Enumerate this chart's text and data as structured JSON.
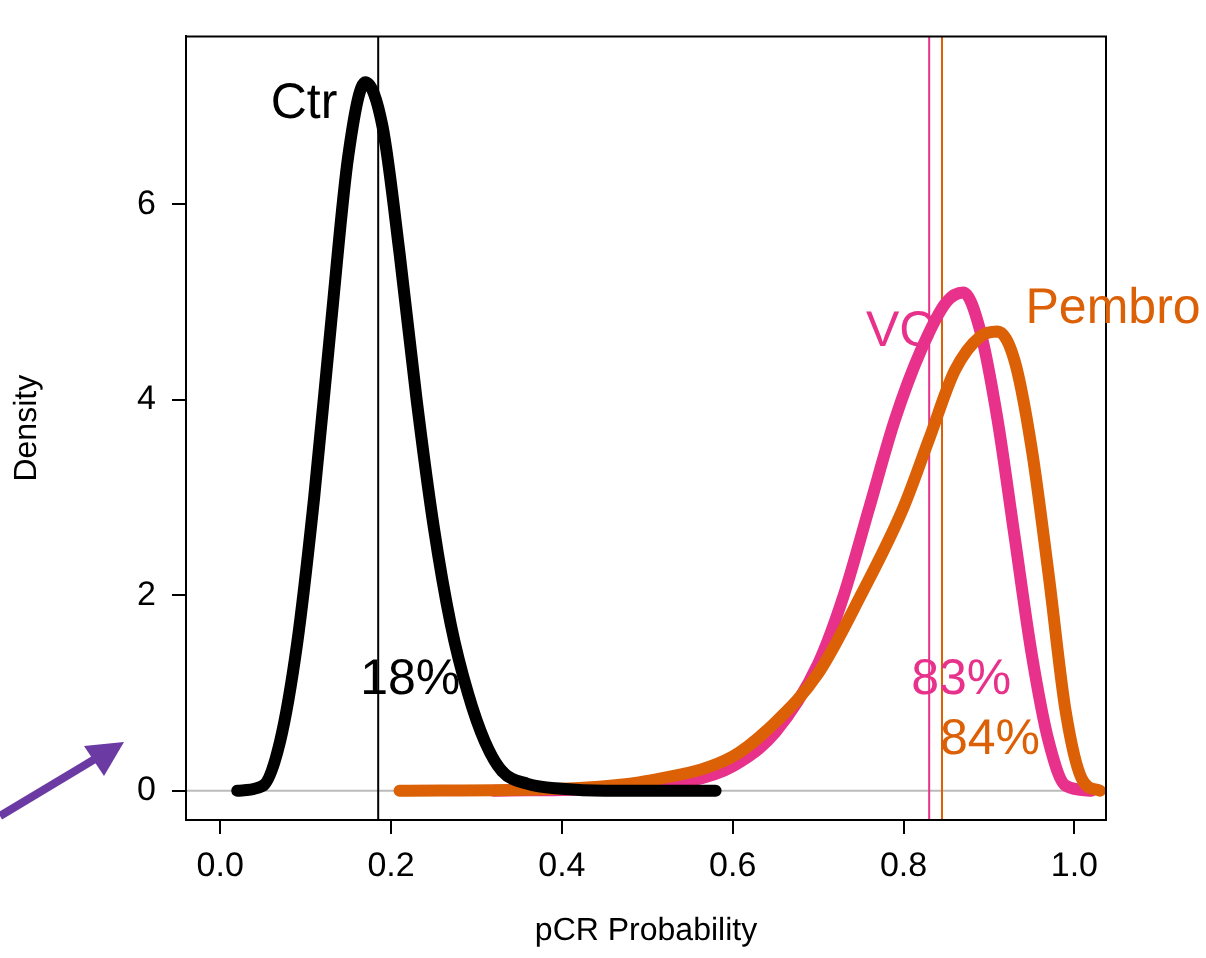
{
  "chart_data": {
    "type": "line",
    "xlabel": "pCR Probability",
    "ylabel": "Density",
    "xlim": [
      -0.04,
      1.037
    ],
    "xticks": [
      {
        "value": 0,
        "label": "0.0"
      },
      0.2,
      0.4,
      0.6,
      0.8,
      {
        "value": 1,
        "label": "1.0"
      }
    ],
    "ylim": [
      -0.3,
      7.72
    ],
    "yticks": [
      0,
      2,
      4,
      6
    ],
    "grid": false,
    "legend": false,
    "marker": "none",
    "line_style": "solid",
    "series": [
      {
        "name": "Ctr",
        "color": "#000000",
        "x": [
          0.02,
          0.05,
          0.07,
          0.09,
          0.11,
          0.13,
          0.15,
          0.17,
          0.19,
          0.21,
          0.23,
          0.25,
          0.27,
          0.29,
          0.31,
          0.33,
          0.36,
          0.4,
          0.45,
          0.58
        ],
        "values": [
          0,
          0.05,
          0.5,
          1.5,
          3.0,
          4.8,
          6.5,
          7.25,
          6.8,
          5.5,
          4.0,
          2.7,
          1.7,
          1.0,
          0.5,
          0.2,
          0.07,
          0.02,
          0,
          0
        ]
      },
      {
        "name": "Pembro",
        "color": "#dc6005",
        "x": [
          0.21,
          0.4,
          0.5,
          0.6,
          0.65,
          0.7,
          0.75,
          0.8,
          0.83,
          0.86,
          0.89,
          0.91,
          0.93,
          0.95,
          0.97,
          0.99,
          1.01,
          1.03
        ],
        "values": [
          0,
          0.02,
          0.1,
          0.35,
          0.7,
          1.2,
          2.0,
          2.9,
          3.6,
          4.3,
          4.65,
          4.7,
          4.4,
          3.5,
          2.2,
          0.8,
          0.1,
          0
        ]
      },
      {
        "name": "VC",
        "color": "#e8318a",
        "x": [
          0.32,
          0.45,
          0.55,
          0.6,
          0.65,
          0.7,
          0.73,
          0.76,
          0.79,
          0.82,
          0.85,
          0.87,
          0.89,
          0.91,
          0.93,
          0.95,
          0.97,
          0.99,
          1.02
        ],
        "values": [
          0,
          0.02,
          0.1,
          0.25,
          0.6,
          1.3,
          2.0,
          2.9,
          3.8,
          4.5,
          5.0,
          5.1,
          4.7,
          3.8,
          2.6,
          1.4,
          0.5,
          0.05,
          0
        ]
      }
    ],
    "ref_lines": [
      {
        "axis": "y",
        "value": 0,
        "color": "#bbbbbb"
      },
      {
        "axis": "x",
        "value": 0.185,
        "label": "18%",
        "color": "#000000"
      },
      {
        "axis": "x",
        "value": 0.83,
        "label": "83%",
        "color": "#e8318a"
      },
      {
        "axis": "x",
        "value": 0.845,
        "label": "84%",
        "color": "#dc6005"
      }
    ]
  }
}
